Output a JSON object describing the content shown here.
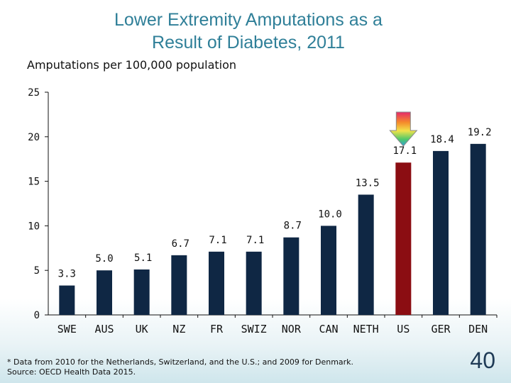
{
  "slide": {
    "title_line1": "Lower Extremity Amputations as a",
    "title_line2": "Result of Diabetes, 2011",
    "footnote_line1": "* Data from 2010 for the Netherlands, Switzerland, and the U.S.; and 2009 for Denmark.",
    "footnote_line2": "Source: OECD Health Data 2015.",
    "page_number": "40"
  },
  "chart_data": {
    "type": "bar",
    "title": "Lower Extremity Amputations as a Result of Diabetes, 2011",
    "ylabel": "Amputations per 100,000 population",
    "xlabel": "",
    "categories": [
      "SWE",
      "AUS",
      "UK",
      "NZ",
      "FR",
      "SWIZ",
      "NOR",
      "CAN",
      "NETH",
      "US",
      "GER",
      "DEN"
    ],
    "values": [
      3.3,
      5.0,
      5.1,
      6.7,
      7.1,
      7.1,
      8.7,
      10.0,
      13.5,
      17.1,
      18.4,
      19.2
    ],
    "value_labels": [
      "3.3",
      "5.0",
      "5.1",
      "6.7",
      "7.1",
      "7.1",
      "8.7",
      "10.0",
      "13.5",
      "17.1",
      "18.4",
      "19.2"
    ],
    "ylim": [
      0,
      25
    ],
    "yticks": [
      0,
      5,
      10,
      15,
      20,
      25
    ],
    "grid": false,
    "legend": "none",
    "highlight": {
      "category": "US",
      "marker": "arrow-down-icon"
    },
    "colors": {
      "bar": "#0f2744",
      "highlight_bar": "#8b0d12",
      "axis": "#111111"
    }
  }
}
